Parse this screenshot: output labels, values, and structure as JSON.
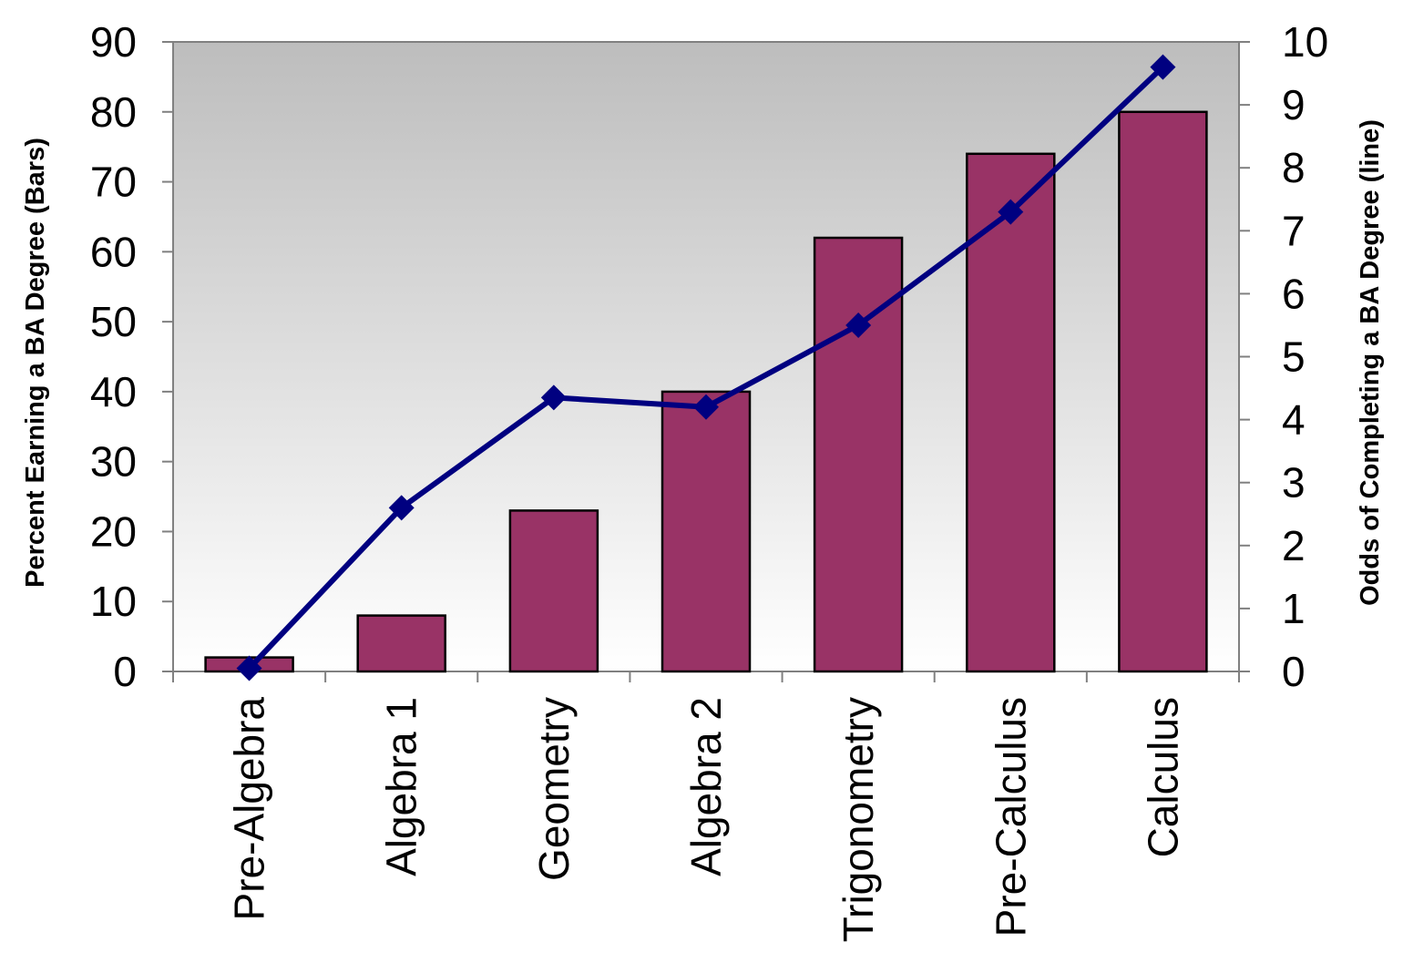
{
  "chart_data": {
    "type": "bar",
    "categories": [
      "Pre-Algebra",
      "Algebra 1",
      "Geometry",
      "Algebra 2",
      "Trigonometry",
      "Pre-Calculus",
      "Calculus"
    ],
    "series": [
      {
        "type": "bar",
        "axis": "left",
        "color": "#993366",
        "values": [
          2,
          8,
          23,
          40,
          62,
          74,
          80
        ]
      },
      {
        "type": "line",
        "axis": "right",
        "color": "#000080",
        "marker": "diamond",
        "values": [
          0.05,
          2.6,
          4.35,
          4.2,
          5.5,
          7.3,
          9.6
        ]
      }
    ],
    "ylabel": "Percent Earning a BA Degree (Bars)",
    "y2label": "Odds of Completing a BA Degree (line)",
    "ylim": [
      0,
      90
    ],
    "y2lim": [
      0,
      10
    ],
    "yticks": [
      "0",
      "10",
      "20",
      "30",
      "40",
      "50",
      "60",
      "70",
      "80",
      "90"
    ],
    "y2ticks": [
      "0",
      "1",
      "2",
      "3",
      "4",
      "5",
      "6",
      "7",
      "8",
      "9",
      "10"
    ],
    "grid": false,
    "plot_background": "gradient gray to white",
    "bar_outline": "#000000",
    "legend": "none"
  }
}
